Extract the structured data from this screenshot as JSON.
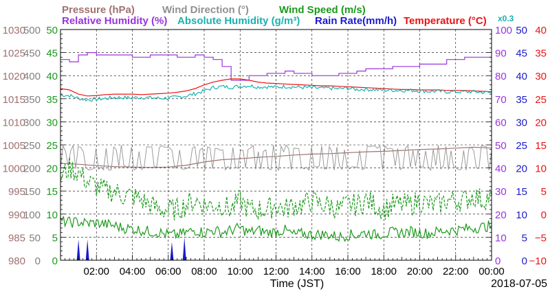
{
  "chart_data": {
    "type": "line",
    "date_label": "2018-07-05",
    "xlabel": "Time (JST)",
    "x_ticks": [
      "02:00",
      "04:00",
      "06:00",
      "08:00",
      "10:00",
      "12:00",
      "14:00",
      "16:00",
      "18:00",
      "20:00",
      "22:00",
      "00:00"
    ],
    "xlim": [
      0,
      24
    ],
    "grid": true,
    "legend": [
      {
        "label": "Pressure (hPa)",
        "color": "#a07070"
      },
      {
        "label": "Wind Direction (°)",
        "color": "#909090"
      },
      {
        "label": "Wind Speed (m/s)",
        "color": "#1a9a1a"
      },
      {
        "label": "Relative Humidity (%)",
        "color": "#9933dd"
      },
      {
        "label": "Absolute Humidity (g/m³)",
        "color": "#1ab0b0"
      },
      {
        "label": "Rain Rate(mm/h)",
        "color": "#1a1acc"
      },
      {
        "label": "Temperature (°C)",
        "color": "#ee1111"
      },
      {
        "label": "x0.3",
        "color": "#1ab0b0"
      }
    ],
    "axes": {
      "pressure": {
        "ticks": [
          "1030",
          "1025",
          "1020",
          "1015",
          "1010",
          "1005",
          "1000",
          "995",
          "990",
          "985",
          "980"
        ],
        "ylim": [
          980,
          1030
        ],
        "color": "#a07070"
      },
      "wind_direction": {
        "ticks": [
          "500",
          "450",
          "400",
          "350",
          "300",
          "250",
          "200",
          "150",
          "100",
          "50",
          "0"
        ],
        "ylim": [
          0,
          500
        ],
        "color": "#808080"
      },
      "wind_speed": {
        "ticks": [
          "50",
          "45",
          "40",
          "35",
          "30",
          "25",
          "20",
          "15",
          "10",
          "5",
          "0"
        ],
        "ylim": [
          0,
          50
        ],
        "color": "#1a9a1a"
      },
      "humidity": {
        "ticks": [
          "100",
          "90",
          "80",
          "70",
          "60",
          "50",
          "40",
          "30",
          "20",
          "10",
          "0"
        ],
        "ylim": [
          0,
          100
        ],
        "color": "#9933dd"
      },
      "rain_rate": {
        "ticks": [
          "50",
          "45",
          "40",
          "35",
          "30",
          "25",
          "20",
          "15",
          "10",
          "5",
          "0"
        ],
        "ylim": [
          0,
          50
        ],
        "color": "#1a1acc"
      },
      "temperature": {
        "ticks": [
          "40",
          "35",
          "30",
          "25",
          "20",
          "15",
          "10",
          "5",
          "0",
          "−5",
          "−10"
        ],
        "ylim": [
          -10,
          40
        ],
        "color": "#ee1111"
      }
    },
    "series": [
      {
        "name": "Relative Humidity (%)",
        "axis": "humidity",
        "color": "#9933dd",
        "style": "step",
        "x": [
          0,
          0.5,
          1,
          1.5,
          2,
          2.5,
          3,
          3.5,
          4,
          4.5,
          5,
          5.5,
          6,
          6.5,
          7,
          7.5,
          8,
          8.5,
          9,
          9.5,
          10,
          10.5,
          11,
          11.5,
          12,
          12.5,
          13,
          13.5,
          14,
          14.5,
          15,
          15.5,
          16,
          16.5,
          17,
          17.5,
          18,
          18.5,
          19,
          19.5,
          20,
          20.5,
          21,
          21.5,
          22,
          22.5,
          23,
          23.5,
          24
        ],
        "y": [
          87,
          86,
          89,
          90,
          89,
          89,
          89,
          89,
          88,
          88,
          89,
          89,
          89,
          88,
          88,
          89,
          88,
          87,
          84,
          78,
          78,
          80,
          80,
          81,
          81,
          82,
          81,
          81,
          80,
          80,
          80,
          81,
          81,
          82,
          83,
          83,
          83,
          84,
          84,
          84,
          85,
          85,
          85,
          87,
          87,
          88,
          88,
          88,
          88
        ]
      },
      {
        "name": "Temperature (°C)",
        "axis": "temperature",
        "color": "#ee1111",
        "x": [
          0,
          0.5,
          1,
          1.5,
          2,
          2.5,
          3,
          3.5,
          4,
          4.5,
          5,
          5.5,
          6,
          6.5,
          7,
          7.5,
          8,
          8.5,
          9,
          9.5,
          10,
          10.5,
          11,
          11.5,
          12,
          12.5,
          13,
          13.5,
          14,
          14.5,
          15,
          15.5,
          16,
          16.5,
          17,
          17.5,
          18,
          18.5,
          19,
          19.5,
          20,
          20.5,
          21,
          21.5,
          22,
          22.5,
          23,
          23.5,
          24
        ],
        "y": [
          27.2,
          26.9,
          26.0,
          25.6,
          25.7,
          25.9,
          26.0,
          26.0,
          26.0,
          25.9,
          26.0,
          26.1,
          26.2,
          26.4,
          26.7,
          27.2,
          28.0,
          28.6,
          29.0,
          29.3,
          29.3,
          29.0,
          28.6,
          28.4,
          28.3,
          28.2,
          28.1,
          28.0,
          27.9,
          27.8,
          27.8,
          27.7,
          27.6,
          27.5,
          27.4,
          27.3,
          27.2,
          27.1,
          27.0,
          27.0,
          26.9,
          26.9,
          26.9,
          26.8,
          26.8,
          26.8,
          26.7,
          26.6,
          26.5
        ]
      },
      {
        "name": "Absolute Humidity (g/m³) x0.3",
        "axis": "humidity",
        "color": "#1ab0b0",
        "x": [
          0,
          0.5,
          1,
          1.5,
          2,
          2.5,
          3,
          3.5,
          4,
          4.5,
          5,
          5.5,
          6,
          6.5,
          7,
          7.5,
          8,
          8.5,
          9,
          9.5,
          10,
          10.5,
          11,
          11.5,
          12,
          12.5,
          13,
          13.5,
          14,
          14.5,
          15,
          15.5,
          16,
          16.5,
          17,
          17.5,
          18,
          18.5,
          19,
          19.5,
          20,
          20.5,
          21,
          21.5,
          22,
          22.5,
          23,
          23.5,
          24
        ],
        "y": [
          71.6,
          71.4,
          70.2,
          69.5,
          69.8,
          70.1,
          70.6,
          70.5,
          70.4,
          70.6,
          70.4,
          70.2,
          70.3,
          70.7,
          71.2,
          72.2,
          73.4,
          74.8,
          75.3,
          75.0,
          75.4,
          75.7,
          75.1,
          75.2,
          75.0,
          75.3,
          75.1,
          74.9,
          74.8,
          74.5,
          74.6,
          74.3,
          74.6,
          74.0,
          74.1,
          73.9,
          73.7,
          73.7,
          73.6,
          73.6,
          73.5,
          73.2,
          73.3,
          73.0,
          73.0,
          73.0,
          73.0,
          72.8,
          72.7
        ]
      },
      {
        "name": "Pressure (hPa)",
        "axis": "pressure",
        "color": "#a07070",
        "x": [
          0,
          1,
          2,
          3,
          4,
          5,
          6,
          7,
          8,
          9,
          10,
          11,
          12,
          13,
          14,
          15,
          16,
          17,
          18,
          19,
          20,
          21,
          22,
          23,
          24
        ],
        "y": [
          1001.0,
          1000.8,
          1000.5,
          1000.3,
          1000.2,
          1000.1,
          1000.2,
          1000.6,
          1001.3,
          1001.8,
          1002.0,
          1002.3,
          1002.5,
          1002.8,
          1003.0,
          1003.1,
          1003.3,
          1003.5,
          1003.6,
          1003.8,
          1004.0,
          1004.1,
          1004.3,
          1004.5,
          1004.3
        ]
      },
      {
        "name": "Wind Direction (°)",
        "axis": "wind_direction",
        "color": "#909090",
        "style": "noisy",
        "x": [
          0,
          24
        ],
        "y": [
          200,
          200
        ],
        "range": [
          180,
          250
        ]
      },
      {
        "name": "Wind Speed (m/s) gust",
        "axis": "wind_speed",
        "color": "#1a9a1a",
        "dashed": true,
        "x": [
          0,
          0.5,
          1,
          1.5,
          2,
          2.5,
          3,
          3.5,
          4,
          4.5,
          5,
          5.5,
          6,
          6.5,
          7,
          7.5,
          8,
          8.5,
          9,
          9.5,
          10,
          10.5,
          11,
          11.5,
          12,
          12.5,
          13,
          13.5,
          14,
          14.5,
          15,
          15.5,
          16,
          16.5,
          17,
          17.5,
          18,
          18.5,
          19,
          19.5,
          20,
          20.5,
          21,
          21.5,
          22,
          22.5,
          23,
          23.5,
          24
        ],
        "y": [
          18,
          20,
          19,
          17,
          16,
          15,
          15,
          14,
          14,
          13,
          12,
          11,
          11,
          11,
          12,
          13,
          12,
          12,
          12,
          11,
          13,
          11,
          11,
          11,
          12,
          11,
          12,
          12,
          13,
          12,
          12,
          11,
          12,
          12,
          13,
          12,
          11,
          12,
          12,
          12,
          13,
          12,
          12,
          13,
          13,
          13,
          14,
          13,
          14
        ]
      },
      {
        "name": "Wind Speed (m/s)",
        "axis": "wind_speed",
        "color": "#1a9a1a",
        "x": [
          0,
          0.5,
          1,
          1.5,
          2,
          2.5,
          3,
          3.5,
          4,
          4.5,
          5,
          5.5,
          6,
          6.5,
          7,
          7.5,
          8,
          8.5,
          9,
          9.5,
          10,
          10.5,
          11,
          11.5,
          12,
          12.5,
          13,
          13.5,
          14,
          14.5,
          15,
          15.5,
          16,
          16.5,
          17,
          17.5,
          18,
          18.5,
          19,
          19.5,
          20,
          20.5,
          21,
          21.5,
          22,
          22.5,
          23,
          23.5,
          24
        ],
        "y": [
          8.5,
          8.2,
          8.3,
          8.0,
          8.1,
          7.8,
          7.5,
          7.0,
          6.8,
          6.5,
          6.2,
          6.0,
          5.5,
          5.5,
          6.0,
          6.5,
          6.0,
          6.5,
          6.0,
          6.5,
          7.0,
          6.0,
          6.5,
          6.0,
          6.2,
          6.5,
          5.5,
          5.8,
          5.5,
          5.6,
          5.5,
          5.0,
          5.5,
          5.5,
          6.0,
          5.5,
          5.8,
          6.0,
          6.0,
          6.2,
          6.0,
          5.8,
          6.2,
          6.5,
          6.5,
          6.8,
          7.0,
          7.2,
          7.5
        ]
      },
      {
        "name": "Rain Rate(mm/h)",
        "axis": "rain_rate",
        "color": "#1a1acc",
        "style": "spikes",
        "x": [
          1.0,
          1.5,
          6.2,
          6.9
        ],
        "y": [
          4.5,
          4.5,
          4.0,
          5.0
        ]
      }
    ]
  }
}
